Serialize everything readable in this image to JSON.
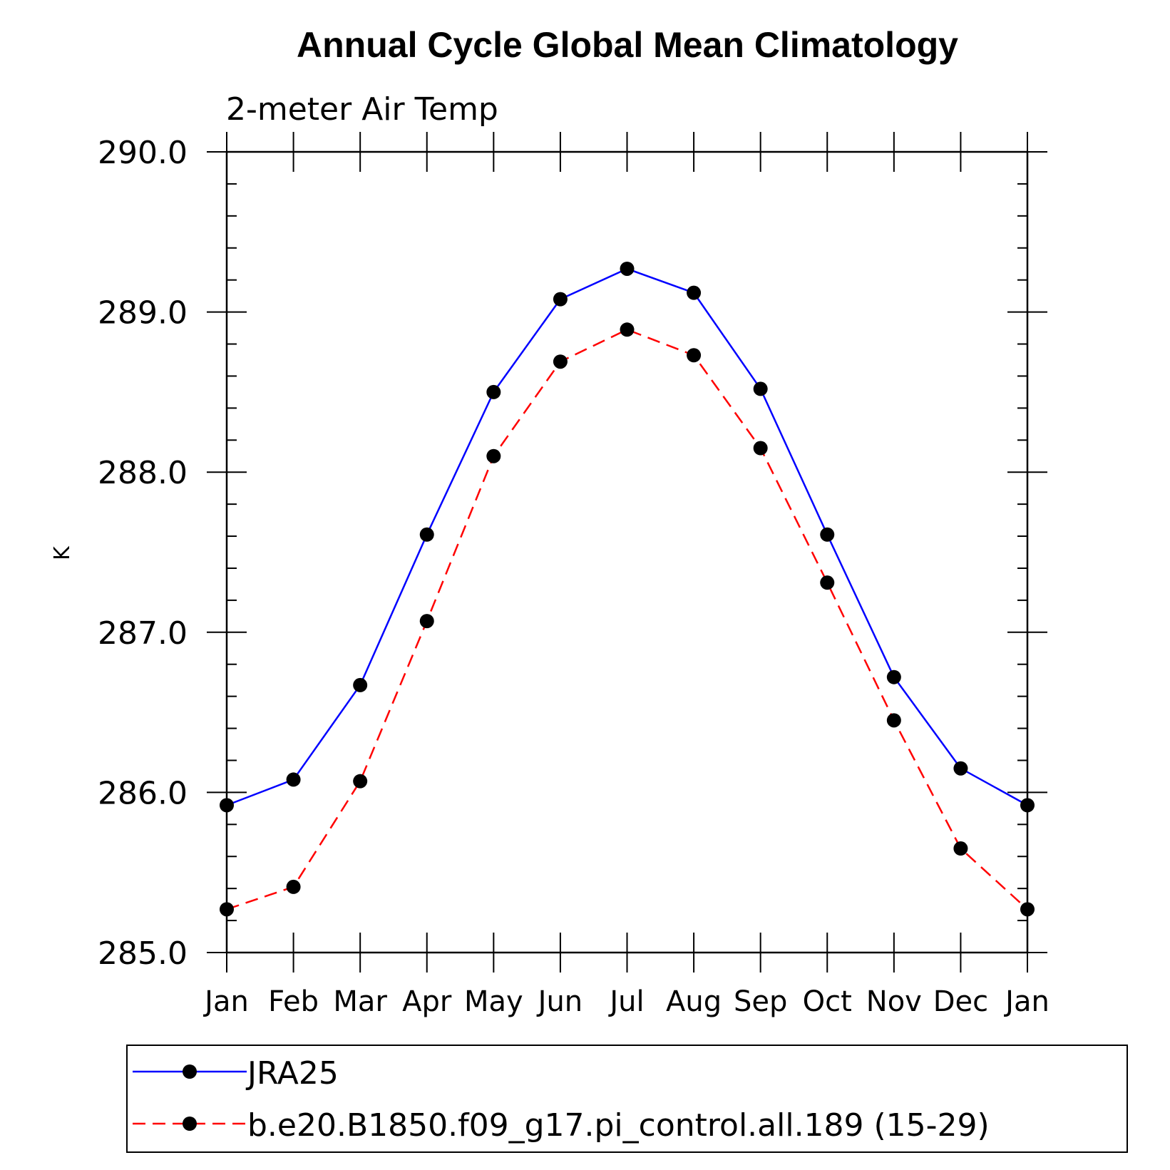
{
  "chart_data": {
    "type": "line",
    "title": "Annual Cycle Global Mean Climatology",
    "subtitle": "2-meter Air Temp",
    "ylabel": "K",
    "xlabel": "",
    "categories": [
      "Jan",
      "Feb",
      "Mar",
      "Apr",
      "May",
      "Jun",
      "Jul",
      "Aug",
      "Sep",
      "Oct",
      "Nov",
      "Dec",
      "Jan"
    ],
    "ylim": [
      285.0,
      290.0
    ],
    "yticks": [
      "285.0",
      "286.0",
      "287.0",
      "288.0",
      "289.0",
      "290.0"
    ],
    "grid": false,
    "legend_position": "bottom",
    "series": [
      {
        "name": "JRA25",
        "color": "#0000ff",
        "dash": "solid",
        "marker": "filled-circle",
        "values": [
          285.92,
          286.08,
          286.67,
          287.61,
          288.5,
          289.08,
          289.27,
          289.12,
          288.52,
          287.61,
          286.72,
          286.15,
          285.92
        ]
      },
      {
        "name": "b.e20.B1850.f09_g17.pi_control.all.189 (15-29)",
        "color": "#ff0000",
        "dash": "dashed",
        "marker": "filled-circle",
        "values": [
          285.27,
          285.41,
          286.07,
          287.07,
          288.1,
          288.69,
          288.89,
          288.73,
          288.15,
          287.31,
          286.45,
          285.65,
          285.27
        ]
      }
    ]
  }
}
